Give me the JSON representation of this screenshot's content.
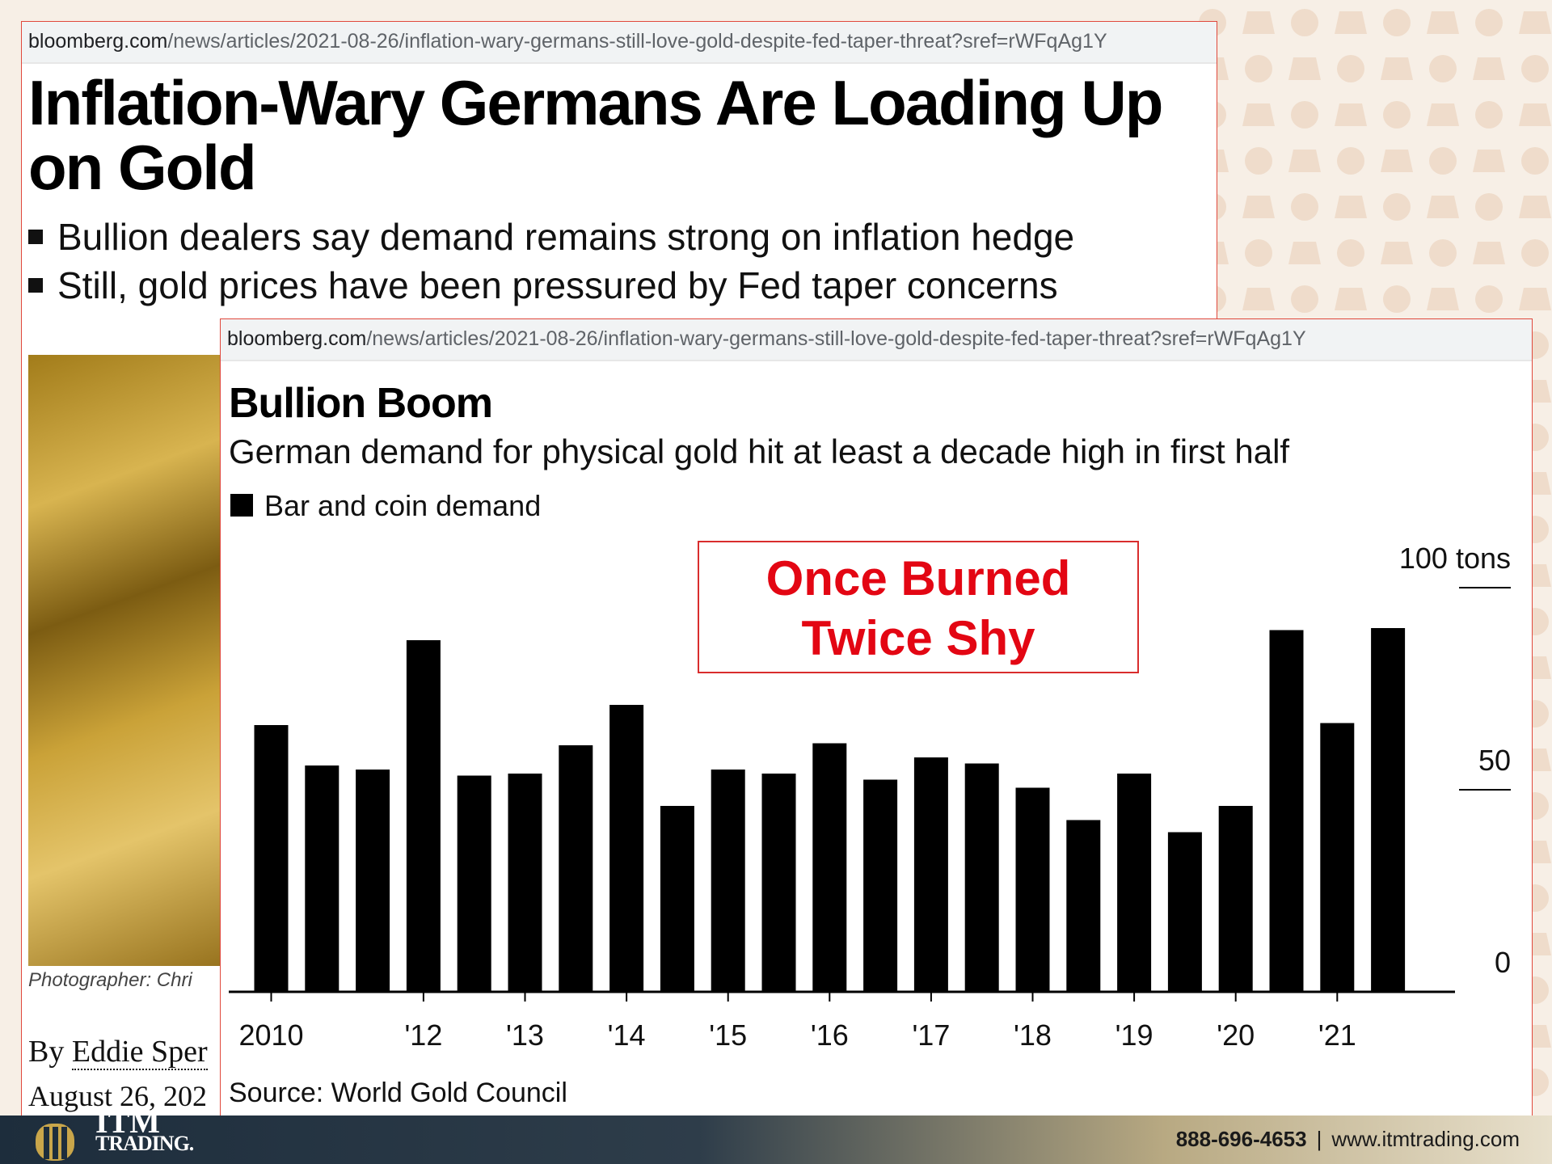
{
  "article": {
    "url_domain": "bloomberg.com",
    "url_path": "/news/articles/2021-08-26/inflation-wary-germans-still-love-gold-despite-fed-taper-threat?sref=rWFqAg1Y",
    "headline": "Inflation-Wary Germans Are Loading Up on Gold",
    "bullets": [
      "Bullion dealers say demand remains strong on inflation hedge",
      "Still, gold prices have been pressured by Fed taper concerns"
    ],
    "photo_caption": "Photographer: Chri",
    "byline_prefix": "By ",
    "author": "Eddie Sper",
    "date": "August 26, 202"
  },
  "chart_panel": {
    "url_domain": "bloomberg.com",
    "url_path": "/news/articles/2021-08-26/inflation-wary-germans-still-love-gold-despite-fed-taper-threat?sref=rWFqAg1Y",
    "callout_line1": "Once Burned",
    "callout_line2": "Twice Shy",
    "source": "Source: World Gold Council"
  },
  "chart_data": {
    "type": "bar",
    "title": "Bullion Boom",
    "subtitle": "German demand for physical gold hit at least a decade high in first half",
    "series": [
      {
        "name": "Bar and coin demand",
        "values": [
          66,
          56,
          55,
          87,
          53.5,
          54,
          61,
          71,
          46,
          55,
          54,
          61.5,
          52.5,
          58,
          56.5,
          50.5,
          42.5,
          54,
          39.5,
          46,
          89.5,
          66.5,
          90
        ]
      }
    ],
    "x_tick_labels": [
      "2010",
      "'12",
      "'13",
      "'14",
      "'15",
      "'16",
      "'17",
      "'18",
      "'19",
      "'20",
      "'21"
    ],
    "x_tick_bar_index": [
      0,
      3,
      5,
      7,
      9,
      11,
      13,
      15,
      17,
      19,
      21
    ],
    "y_ticks": [
      {
        "value": 0,
        "label": "0"
      },
      {
        "value": 50,
        "label": "50"
      },
      {
        "value": 100,
        "label": "100 tons"
      }
    ],
    "ylim": [
      0,
      100
    ],
    "xlabel": "",
    "ylabel": "",
    "legend_position": "top-left",
    "grid": false,
    "bar_color": "#000000"
  },
  "footer": {
    "logo_top": "ITM",
    "logo_text": "TRADING.",
    "phone": "888-696-4653",
    "separator": "|",
    "website": "www.itmtrading.com"
  },
  "colors": {
    "background": "#f7efe6",
    "pattern": "#efdccb",
    "panel_border": "#e0483c",
    "callout_red": "#e30613",
    "footer_dark": "#1d2d3c"
  }
}
